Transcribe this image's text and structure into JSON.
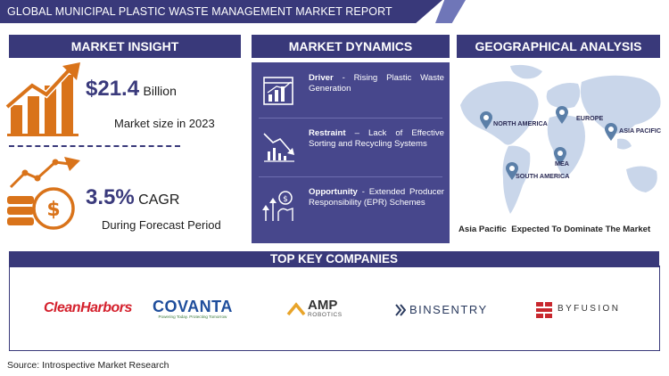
{
  "header": {
    "title": "GLOBAL MUNICIPAL PLASTIC WASTE MANAGEMENT MARKET REPORT"
  },
  "insight": {
    "heading": "MARKET INSIGHT",
    "market_value": "$21.4",
    "market_unit": "Billion",
    "market_caption": "Market size in 2023",
    "cagr_value": "3.5%",
    "cagr_unit": "CAGR",
    "cagr_caption": "During Forecast Period"
  },
  "dynamics": {
    "heading": "MARKET DYNAMICS",
    "items": [
      {
        "label": "Driver",
        "text": " - Rising Plastic Waste Generation"
      },
      {
        "label": "Restraint",
        "text": " – Lack of Effective Sorting and Recycling Systems"
      },
      {
        "label": "Opportunity",
        "text": " - Extended Producer Responsibility (EPR) Schemes"
      }
    ]
  },
  "geo": {
    "heading": "GEOGRAPHICAL ANALYSIS",
    "regions": [
      "NORTH AMERICA",
      "EUROPE",
      "ASIA PACIFIC",
      "MEA",
      "SOUTH AMERICA"
    ],
    "caption": "Asia Pacific  Expected To Dominate The Market"
  },
  "companies": {
    "heading": "TOP KEY COMPANIES",
    "list": [
      {
        "name": "CleanHarbors"
      },
      {
        "name": "COVANTA",
        "tagline": "Powering Today. Protecting Tomorrow"
      },
      {
        "name": "AMP",
        "sub": "ROBOTICS"
      },
      {
        "name": "BINSENTRY"
      },
      {
        "name": "BYFUSION"
      }
    ]
  },
  "footer": {
    "source": "Source: Introspective Market Research"
  },
  "colors": {
    "navy": "#39397a",
    "panel": "#47478c",
    "accent": "#d9731a",
    "map": "#c9d6ea",
    "pin": "#5b7fa8"
  }
}
